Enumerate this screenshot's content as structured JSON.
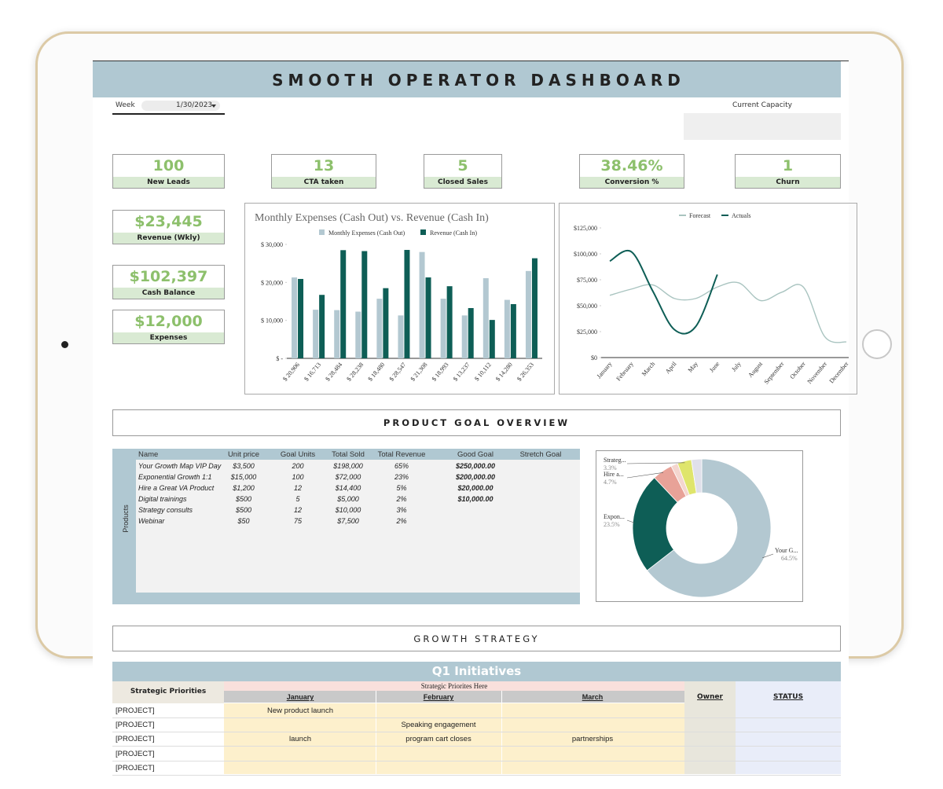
{
  "header": {
    "title": "SMOOTH OPERATOR DASHBOARD",
    "week_label": "Week",
    "week_value": "1/30/2023",
    "capacity_label": "Current Capacity"
  },
  "kpis": [
    {
      "value": "100",
      "label": "New Leads"
    },
    {
      "value": "13",
      "label": "CTA taken"
    },
    {
      "value": "5",
      "label": "Closed Sales"
    },
    {
      "value": "38.46%",
      "label": "Conversion %"
    },
    {
      "value": "1",
      "label": "Churn"
    }
  ],
  "side_kpis": [
    {
      "value": "$23,445",
      "label": "Revenue (Wkly)"
    },
    {
      "value": "$102,397",
      "label": "Cash Balance"
    },
    {
      "value": "$12,000",
      "label": "Expenses"
    }
  ],
  "chart_data": [
    {
      "type": "bar",
      "title": "Monthly Expenses (Cash Out) vs. Revenue (Cash In)",
      "categories": [
        "$ 20,906",
        "$ 16,713",
        "$ 28,484",
        "$ 28,238",
        "$ 18,480",
        "$ 28,547",
        "$ 21,308",
        "$ 18,993",
        "$ 13,237",
        "$ 10,112",
        "$ 14,280",
        "$ 26,353"
      ],
      "series": [
        {
          "name": "Monthly Expenses (Cash Out)",
          "color": "#b3c8d1",
          "values": [
            21300,
            12800,
            12700,
            12300,
            15700,
            11300,
            28000,
            15700,
            11300,
            21100,
            15400,
            23000
          ]
        },
        {
          "name": "Revenue (Cash In)",
          "color": "#0e5e56",
          "values": [
            20906,
            16713,
            28484,
            28238,
            18480,
            28547,
            21308,
            18993,
            13237,
            10112,
            14280,
            26353
          ]
        }
      ],
      "ylim": [
        0,
        30000
      ],
      "yticks": [
        {
          "value": 0,
          "label": "$ -"
        },
        {
          "value": 10000,
          "label": "$ 10,000"
        },
        {
          "value": 20000,
          "label": "$ 20,000"
        },
        {
          "value": 30000,
          "label": "$ 30,000"
        }
      ],
      "grid": false,
      "legend": "top"
    },
    {
      "type": "line",
      "categories": [
        "January",
        "February",
        "March",
        "April",
        "May",
        "June",
        "July",
        "August",
        "September",
        "October",
        "November",
        "December"
      ],
      "series": [
        {
          "name": "Forecast",
          "color": "#a9c4c0",
          "values": [
            60000,
            66000,
            70000,
            57000,
            57000,
            68000,
            72000,
            55000,
            63000,
            68000,
            20000,
            15000
          ]
        },
        {
          "name": "Actuals",
          "color": "#0e5e56",
          "values": [
            93000,
            102000,
            64000,
            27000,
            30000,
            80000,
            null,
            null,
            null,
            null,
            null,
            null
          ]
        }
      ],
      "ylim": [
        0,
        125000
      ],
      "yticks": [
        {
          "value": 0,
          "label": "$0"
        },
        {
          "value": 25000,
          "label": "$25,000"
        },
        {
          "value": 50000,
          "label": "$50,000"
        },
        {
          "value": 75000,
          "label": "$75,000"
        },
        {
          "value": 100000,
          "label": "$100,000"
        },
        {
          "value": 125000,
          "label": "$125,000"
        }
      ],
      "grid": false,
      "legend": "top"
    },
    {
      "type": "pie",
      "donut": true,
      "categories": [
        "Your G...",
        "Expon...",
        "Hire a...",
        null,
        "Strateg...",
        null
      ],
      "values": [
        64.5,
        23.5,
        4.7,
        1.6,
        3.3,
        2.4
      ],
      "value_labels": [
        "64.5%",
        "23.5%",
        "4.7%",
        null,
        "3.3%",
        null
      ],
      "colors": [
        "#b3c8d1",
        "#0e5e56",
        "#e8a298",
        "#f4d6cf",
        "#dfe56c",
        "#e0e0ea"
      ]
    }
  ],
  "product_goals": {
    "title": "PRODUCT GOAL OVERVIEW",
    "side_label": "Products",
    "columns": [
      "Name",
      "Unit price",
      "Goal Units",
      "Total Sold",
      "Total Revenue",
      "Good Goal",
      "Stretch Goal"
    ],
    "rows": [
      [
        "Your Growth Map VIP Day",
        "$3,500",
        "200",
        "$198,000",
        "65%",
        "$250,000.00"
      ],
      [
        "Exponential Growth 1:1",
        "$15,000",
        "100",
        "$72,000",
        "23%",
        "$200,000.00"
      ],
      [
        "Hire a Great VA Product",
        "$1,200",
        "12",
        "$14,400",
        "5%",
        "$20,000.00"
      ],
      [
        "Digital trainings",
        "$500",
        "5",
        "$5,000",
        "2%",
        "$10,000.00"
      ],
      [
        "Strategy consults",
        "$500",
        "12",
        "$10,000",
        "3%"
      ],
      [
        "Webinar",
        "$50",
        "75",
        "$7,500",
        "2%"
      ]
    ]
  },
  "growth_strategy": {
    "title": "GROWTH STRATEGY",
    "banner": "Q1 Initiatives",
    "priorities_label": "Strategic Priorities",
    "priorities_note": "Strategic Priorites Here",
    "months": [
      "January",
      "February",
      "March"
    ],
    "owner_label": "Owner",
    "status_label": "STATUS",
    "rows": [
      {
        "project": "[PROJECT]",
        "jan": "New product launch"
      },
      {
        "project": "[PROJECT]",
        "feb": "Speaking engagement"
      },
      {
        "project": "[PROJECT]",
        "jan": "launch",
        "feb": "program cart closes",
        "mar": "partnerships"
      },
      {
        "project": "[PROJECT]"
      },
      {
        "project": "[PROJECT]"
      }
    ]
  }
}
